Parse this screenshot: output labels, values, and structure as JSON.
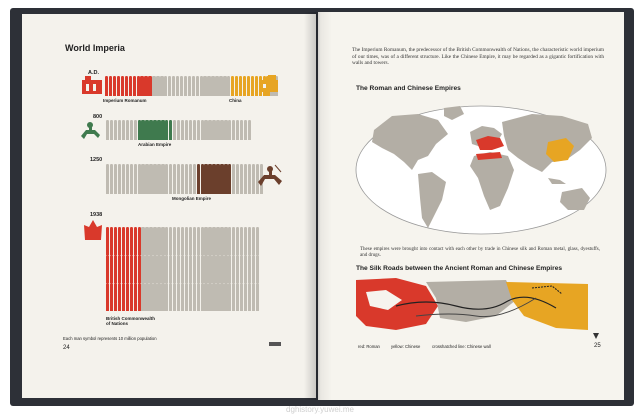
{
  "left_page": {
    "title": "World Imperia",
    "rows": [
      {
        "year": "A.D.",
        "labels": [
          "Imperium Romanum",
          "China"
        ]
      },
      {
        "year": "800",
        "labels": [
          "Arabian Empire"
        ]
      },
      {
        "year": "1250",
        "labels": [
          "Mongolian Empire"
        ]
      },
      {
        "year": "1938",
        "labels": [
          "British Commonwealth",
          "of Nations"
        ]
      }
    ],
    "caption": "Each man symbol represents 10 million population",
    "page_number": "24"
  },
  "right_page": {
    "intro": "The Imperium Romanum, the predecessor of the British Commonwealth of Nations, the characteristic world imperium of our times, was of a different structure. Like the Chinese Empire, it may be regarded as a gigantic fortification with walls and towers.",
    "map_heading": "The Roman and Chinese Empires",
    "trade_text": "These empires were brought into contact with each other by trade in Chinese silk and Roman metal, glass, dyestuffs, and drugs.",
    "silk_heading": "The Silk Roads between the Ancient Roman and Chinese Empires",
    "legend": {
      "red": "red: Roman",
      "yellow": "yellow: Chinese",
      "line": "crosshatched line: Chinese wall"
    },
    "page_number": "25"
  },
  "watermark": "dghistory.yuwei.me",
  "colors": {
    "red": "#d9392b",
    "yellow": "#e7a523",
    "green": "#3f7a4e",
    "brown": "#6b3f2c",
    "grey": "#bfbbb2",
    "land": "#b3aea5",
    "ocean": "#ffffff"
  }
}
